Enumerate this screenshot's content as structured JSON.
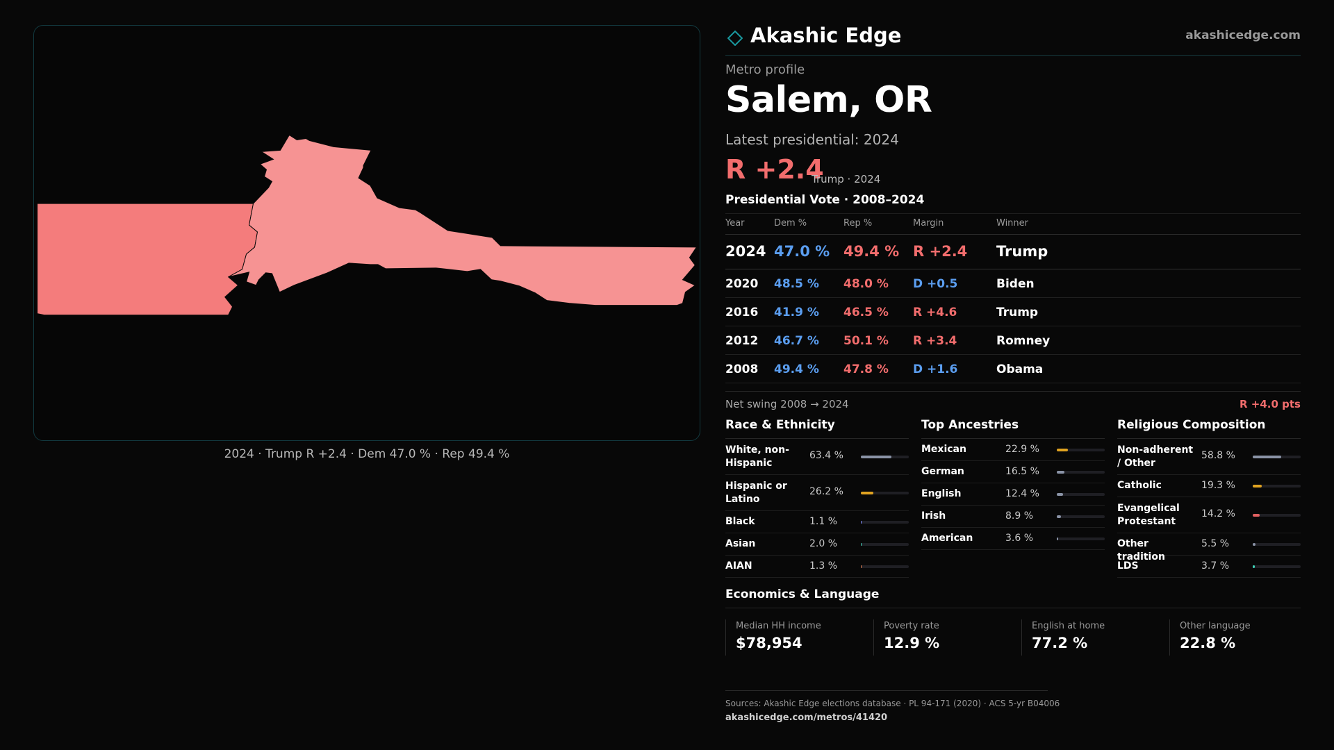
{
  "map": {
    "caption": "2024 · Trump R +2.4 · Dem 47.0 % · Rep 49.4 %",
    "fill_colors": [
      "#f47c7c",
      "#f69393"
    ]
  },
  "header": {
    "brand": "Akashic Edge",
    "site": "akashicedge.com",
    "logo_icon": "diamond-icon",
    "accent": "#1a9aa0"
  },
  "profile": {
    "eyebrow": "Metro profile",
    "city": "Salem, OR",
    "latest": "Latest presidential: 2024",
    "margin": "R +2.4",
    "margin_sub": "Trump · 2024"
  },
  "vote": {
    "title": "Presidential Vote · 2008–2024",
    "headers": [
      "Year",
      "Dem %",
      "Rep %",
      "Margin",
      "Winner"
    ],
    "rows": [
      {
        "year": "2024",
        "dem": "47.0 %",
        "rep": "49.4 %",
        "margin": "R +2.4",
        "party": "R",
        "winner": "Trump"
      },
      {
        "year": "2020",
        "dem": "48.5 %",
        "rep": "48.0 %",
        "margin": "D +0.5",
        "party": "D",
        "winner": "Biden"
      },
      {
        "year": "2016",
        "dem": "41.9 %",
        "rep": "46.5 %",
        "margin": "R +4.6",
        "party": "R",
        "winner": "Trump"
      },
      {
        "year": "2012",
        "dem": "46.7 %",
        "rep": "50.1 %",
        "margin": "R +3.4",
        "party": "R",
        "winner": "Romney"
      },
      {
        "year": "2008",
        "dem": "49.4 %",
        "rep": "47.8 %",
        "margin": "D +1.6",
        "party": "D",
        "winner": "Obama"
      }
    ],
    "colors": {
      "dem": "#5b9ef0",
      "rep": "#f26d6d"
    }
  },
  "swing": {
    "label": "Net swing 2008 → 2024",
    "value": "R +4.0 pts"
  },
  "race": {
    "title": "Race & Ethnicity",
    "rows": [
      {
        "label": "White, non-Hispanic",
        "pct": "63.4 %",
        "value": 63.4,
        "color": "#8a93a6",
        "tall": true
      },
      {
        "label": "Hispanic or Latino",
        "pct": "26.2 %",
        "value": 26.2,
        "color": "#e0a321",
        "tall": true
      },
      {
        "label": "Black",
        "pct": "1.1 %",
        "value": 1.1,
        "color": "#7f8cff",
        "tall": false
      },
      {
        "label": "Asian",
        "pct": "2.0 %",
        "value": 2.0,
        "color": "#3ecfb6",
        "tall": false
      },
      {
        "label": "AIAN",
        "pct": "1.3 %",
        "value": 1.3,
        "color": "#e07a4a",
        "tall": false
      }
    ]
  },
  "ancestry": {
    "title": "Top Ancestries",
    "rows": [
      {
        "label": "Mexican",
        "pct": "22.9 %",
        "value": 22.9,
        "color": "#e0a321",
        "tall": false
      },
      {
        "label": "German",
        "pct": "16.5 %",
        "value": 16.5,
        "color": "#8a93a6",
        "tall": false
      },
      {
        "label": "English",
        "pct": "12.4 %",
        "value": 12.4,
        "color": "#8a93a6",
        "tall": false
      },
      {
        "label": "Irish",
        "pct": "8.9 %",
        "value": 8.9,
        "color": "#8a93a6",
        "tall": false
      },
      {
        "label": "American",
        "pct": "3.6 %",
        "value": 3.6,
        "color": "#8a93a6",
        "tall": false
      }
    ]
  },
  "religion": {
    "title": "Religious Composition",
    "rows": [
      {
        "label": "Non-adherent / Other",
        "pct": "58.8 %",
        "value": 58.8,
        "color": "#8a93a6",
        "tall": true
      },
      {
        "label": "Catholic",
        "pct": "19.3 %",
        "value": 19.3,
        "color": "#e0a321",
        "tall": false
      },
      {
        "label": "Evangelical Protestant",
        "pct": "14.2 %",
        "value": 14.2,
        "color": "#e06060",
        "tall": true
      },
      {
        "label": "Other tradition",
        "pct": "5.5 %",
        "value": 5.5,
        "color": "#8a93a6",
        "tall": false
      },
      {
        "label": "LDS",
        "pct": "3.7 %",
        "value": 3.7,
        "color": "#3ecfb6",
        "tall": false
      }
    ]
  },
  "econ": {
    "title": "Economics & Language",
    "items": [
      {
        "label": "Median HH income",
        "value": "$78,954"
      },
      {
        "label": "Poverty rate",
        "value": "12.9 %"
      },
      {
        "label": "English at home",
        "value": "77.2 %"
      },
      {
        "label": "Other language",
        "value": "22.8 %"
      }
    ]
  },
  "footer": {
    "sources": "Sources: Akashic Edge elections database · PL 94-171 (2020) · ACS 5-yr B04006",
    "url": "akashicedge.com/metros/41420"
  }
}
